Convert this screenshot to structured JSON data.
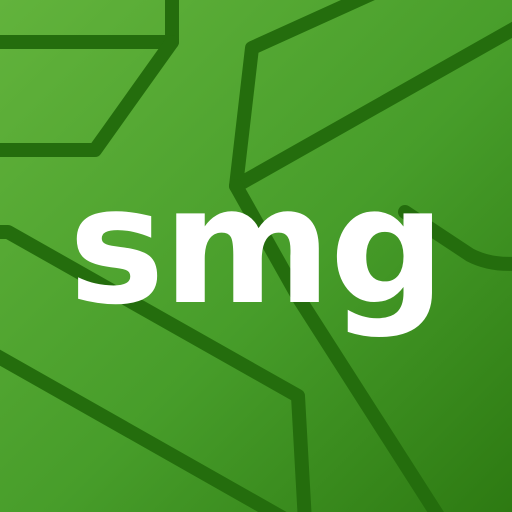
{
  "logo": {
    "text": "smg"
  },
  "colors": {
    "background_top_left": "#62b33c",
    "background_bottom_right": "#2d7a12",
    "line_color": "#246d0d",
    "text_color": "#ffffff"
  },
  "icons": {
    "pattern": "geometric-line-pattern-icon"
  }
}
